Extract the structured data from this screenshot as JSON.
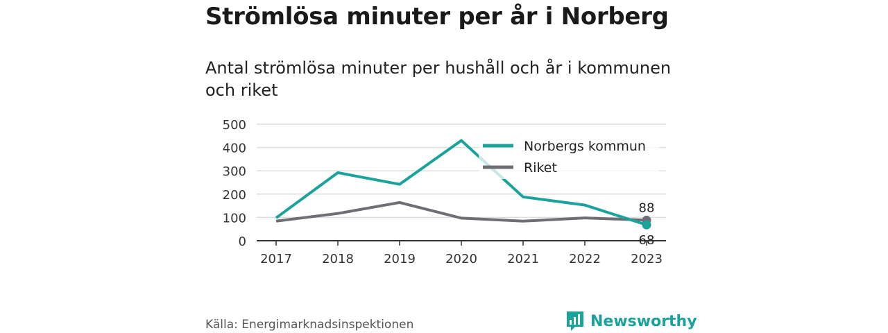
{
  "header": {
    "title": "Strömlösa minuter per år i Norberg",
    "subtitle": "Antal strömlösa minuter per hushåll och år i kommunen och riket"
  },
  "footer": {
    "source": "Källa: Energimarknadsinspektionen",
    "brand": "Newsworthy"
  },
  "colors": {
    "norberg": "#1aa39a",
    "riket": "#6f6e75",
    "grid": "#dedede",
    "brand": "#1aa39a"
  },
  "chart_data": {
    "type": "line",
    "categories": [
      "2017",
      "2018",
      "2019",
      "2020",
      "2021",
      "2022",
      "2023"
    ],
    "ylim": [
      0,
      500
    ],
    "yticks": [
      "0",
      "100",
      "200",
      "300",
      "400",
      "500"
    ],
    "grid": true,
    "legend_position": "top-right",
    "series": [
      {
        "name": "Norbergs kommun",
        "values": [
          98,
          292,
          242,
          430,
          188,
          153,
          68
        ],
        "color": "#1aa39a",
        "end_label": "68"
      },
      {
        "name": "Riket",
        "values": [
          84,
          117,
          164,
          97,
          84,
          98,
          88
        ],
        "color": "#6f6e75",
        "end_label": "88"
      }
    ]
  }
}
